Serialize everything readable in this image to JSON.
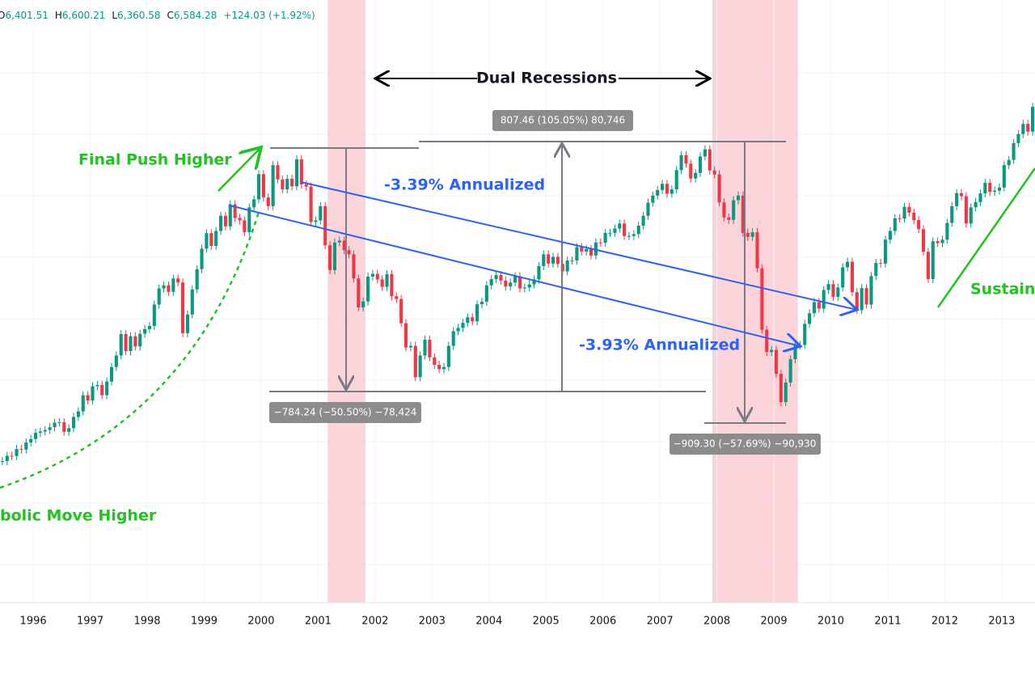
{
  "header": {
    "ohlc": [
      {
        "label": "O",
        "value": "6,401.51"
      },
      {
        "label": "H",
        "value": "6,600.21"
      },
      {
        "label": "L",
        "value": "6,360.58"
      },
      {
        "label": "C",
        "value": "6,584.28"
      }
    ],
    "change": "+124.03 (+1.92%)"
  },
  "annotations": {
    "dual_recessions": "Dual Recessions",
    "final_push": "Final Push Higher",
    "parabolic": "bolic Move Higher",
    "sustained": "Sustaine",
    "trend_upper": "-3.39% Annualized",
    "trend_lower": "-3.93% Annualized",
    "measure_rise": "807.46 (105.05%) 80,746",
    "measure_drop_1": "−784.24 (−50.50%) −78,424",
    "measure_drop_2": "−909.30 (−57.69%) −90,930"
  },
  "chart_data": {
    "type": "candlestick",
    "up_color": "#089981",
    "down_color": "#f23645",
    "shade_color": "#f8c6cb",
    "xlim": [
      1995.4167,
      2013.5833
    ],
    "ylim": [
      89,
      2030
    ],
    "xticks": [
      1996,
      1997,
      1998,
      1999,
      2000,
      2001,
      2002,
      2003,
      2004,
      2005,
      2006,
      2007,
      2008,
      2009,
      2010,
      2011,
      2012,
      2013
    ],
    "shaded_ranges": [
      [
        2001.17,
        2001.83
      ],
      [
        2007.92,
        2009.42
      ]
    ],
    "values": [
      545,
      562,
      561,
      584,
      582,
      605,
      616,
      636,
      640,
      645,
      654,
      669,
      670,
      639,
      651,
      687,
      705,
      757,
      740,
      786,
      790,
      757,
      801,
      848,
      885,
      954,
      899,
      947,
      914,
      955,
      970,
      980,
      1049,
      1101,
      1111,
      1090,
      1133,
      1120,
      957,
      1017,
      1098,
      1163,
      1229,
      1279,
      1238,
      1286,
      1335,
      1301,
      1372,
      1328,
      1320,
      1282,
      1362,
      1388,
      1469,
      1394,
      1366,
      1498,
      1452,
      1420,
      1454,
      1430,
      1517,
      1436,
      1429,
      1315,
      1320,
      1366,
      1240,
      1160,
      1249,
      1255,
      1224,
      1211,
      1133,
      1040,
      1059,
      1139,
      1148,
      1130,
      1106,
      1147,
      1076,
      1067,
      989,
      911,
      916,
      815,
      885,
      936,
      879,
      855,
      841,
      848,
      916,
      963,
      974,
      990,
      1008,
      995,
      1050,
      1058,
      1111,
      1131,
      1144,
      1126,
      1107,
      1120,
      1140,
      1101,
      1104,
      1114,
      1130,
      1173,
      1211,
      1181,
      1203,
      1180,
      1156,
      1191,
      1191,
      1234,
      1220,
      1228,
      1207,
      1249,
      1248,
      1280,
      1280,
      1294,
      1310,
      1270,
      1270,
      1276,
      1303,
      1335,
      1377,
      1400,
      1418,
      1438,
      1406,
      1420,
      1482,
      1530,
      1503,
      1455,
      1473,
      1526,
      1549,
      1481,
      1468,
      1378,
      1330,
      1322,
      1385,
      1400,
      1280,
      1267,
      1282,
      1166,
      968,
      896,
      903,
      826,
      735,
      798,
      873,
      919,
      919,
      987,
      1021,
      1057,
      1036,
      1096,
      1115,
      1074,
      1104,
      1169,
      1187,
      1089,
      1031,
      1102,
      1049,
      1141,
      1183,
      1181,
      1258,
      1286,
      1327,
      1326,
      1364,
      1345,
      1321,
      1292,
      1219,
      1131,
      1253,
      1247,
      1258,
      1312,
      1366,
      1408,
      1398,
      1310,
      1362,
      1379,
      1407,
      1441,
      1412,
      1416,
      1426,
      1498,
      1515,
      1569,
      1598,
      1631,
      1606,
      1686
    ]
  }
}
